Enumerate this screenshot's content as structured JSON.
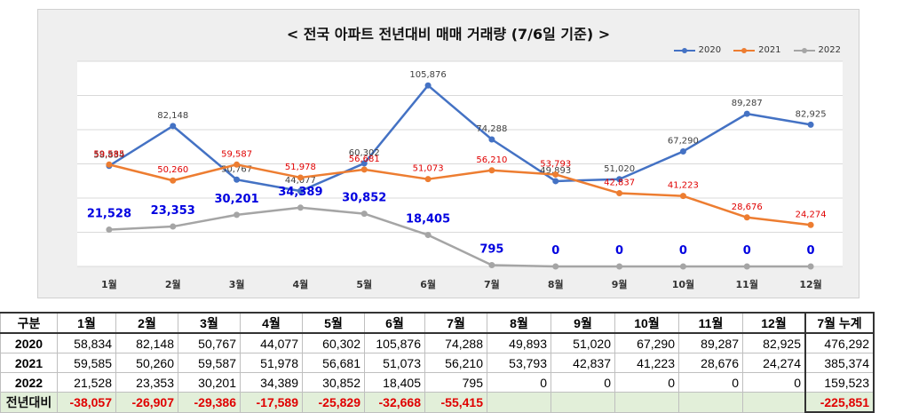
{
  "chart_data": {
    "type": "line",
    "title": "< 전국 아파트 전년대비 매매 거래량 (7/6일 기준) >",
    "categories": [
      "1월",
      "2월",
      "3월",
      "4월",
      "5월",
      "6월",
      "7월",
      "8월",
      "9월",
      "10월",
      "11월",
      "12월"
    ],
    "ylim": [
      0,
      120000
    ],
    "grid": true,
    "legend": "top-right",
    "series": [
      {
        "name": "2020",
        "color": "#4472c4",
        "values": [
          58834,
          82148,
          50767,
          44077,
          60302,
          105876,
          74288,
          49893,
          51020,
          67290,
          89287,
          82925
        ],
        "labels": [
          "58,834",
          "82,148",
          "50,767",
          "44,077",
          "60,302",
          "105,876",
          "74,288",
          "49,893",
          "51,020",
          "67,290",
          "89,287",
          "82,925"
        ]
      },
      {
        "name": "2021",
        "color": "#ed7d31",
        "values": [
          59585,
          50260,
          59587,
          51978,
          56681,
          51073,
          56210,
          53793,
          42837,
          41223,
          28676,
          24274
        ],
        "labels": [
          "59,585",
          "50,260",
          "59,587",
          "51,978",
          "56,681",
          "51,073",
          "56,210",
          "53,793",
          "42,837",
          "41,223",
          "28,676",
          "24,274"
        ]
      },
      {
        "name": "2022",
        "color": "#a5a5a5",
        "values": [
          21528,
          23353,
          30201,
          34389,
          30852,
          18405,
          795,
          0,
          0,
          0,
          0,
          0
        ],
        "labels": [
          "21,528",
          "23,353",
          "30,201",
          "34,389",
          "30,852",
          "18,405",
          "795",
          "0",
          "0",
          "0",
          "0",
          "0"
        ]
      }
    ]
  },
  "table": {
    "headers": [
      "구분",
      "1월",
      "2월",
      "3월",
      "4월",
      "5월",
      "6월",
      "7월",
      "8월",
      "9월",
      "10월",
      "11월",
      "12월",
      "7월 누계"
    ],
    "rows": [
      {
        "label": "2020",
        "cells": [
          "58,834",
          "82,148",
          "50,767",
          "44,077",
          "60,302",
          "105,876",
          "74,288",
          "49,893",
          "51,020",
          "67,290",
          "89,287",
          "82,925",
          "476,292"
        ]
      },
      {
        "label": "2021",
        "cells": [
          "59,585",
          "50,260",
          "59,587",
          "51,978",
          "56,681",
          "51,073",
          "56,210",
          "53,793",
          "42,837",
          "41,223",
          "28,676",
          "24,274",
          "385,374"
        ]
      },
      {
        "label": "2022",
        "cells": [
          "21,528",
          "23,353",
          "30,201",
          "34,389",
          "30,852",
          "18,405",
          "795",
          "0",
          "0",
          "0",
          "0",
          "0",
          "159,523"
        ]
      },
      {
        "label": "전년대비",
        "cells": [
          "-38,057",
          "-26,907",
          "-29,386",
          "-17,589",
          "-25,829",
          "-32,668",
          "-55,415",
          "",
          "",
          "",
          "",
          "",
          "-225,851"
        ]
      }
    ]
  }
}
